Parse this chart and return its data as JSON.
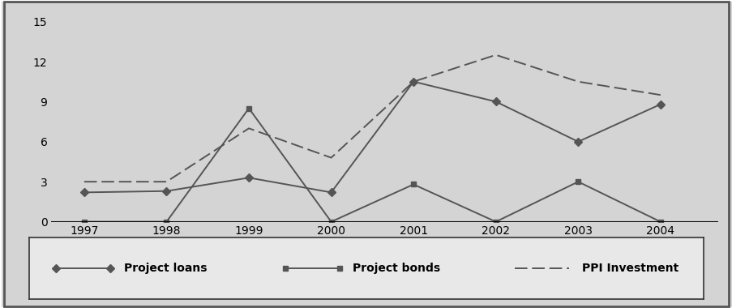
{
  "years": [
    1997,
    1998,
    1999,
    2000,
    2001,
    2002,
    2003,
    2004
  ],
  "project_loans": [
    2.2,
    2.3,
    3.3,
    2.2,
    10.5,
    9.0,
    6.0,
    8.8
  ],
  "project_bonds": [
    0.0,
    0.0,
    8.5,
    0.0,
    2.8,
    0.0,
    3.0,
    0.0
  ],
  "ppi_investment": [
    3.0,
    3.0,
    7.0,
    4.8,
    10.5,
    12.5,
    10.5,
    9.5
  ],
  "line_color": "#555555",
  "bg_color": "#d4d4d4",
  "plot_bg_color": "#d4d4d4",
  "yticks": [
    0,
    3,
    6,
    9,
    12,
    15
  ],
  "ylim": [
    0,
    15
  ],
  "xlim_min": 1996.6,
  "xlim_max": 2004.7
}
